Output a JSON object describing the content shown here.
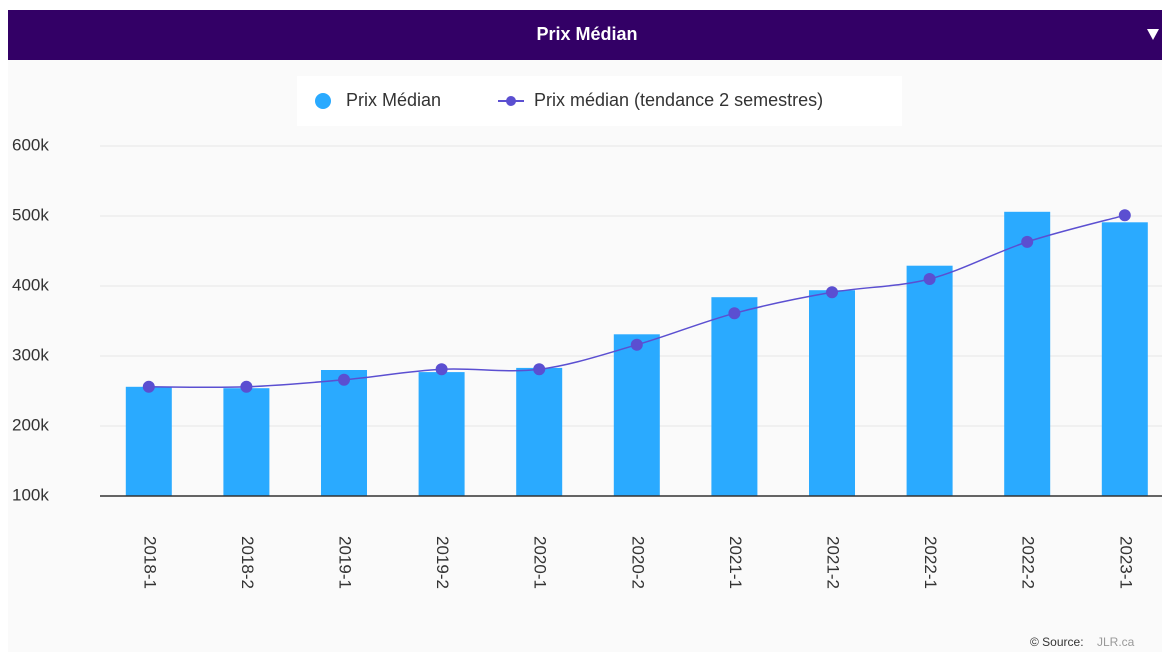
{
  "chart_data": {
    "type": "bar",
    "title": "Prix Médian",
    "categories": [
      "2018-1",
      "2018-2",
      "2019-1",
      "2019-2",
      "2020-1",
      "2020-2",
      "2021-1",
      "2021-2",
      "2022-1",
      "2022-2",
      "2023-1"
    ],
    "series": [
      {
        "name": "Prix Médian",
        "type": "bar",
        "color": "#2aaaff",
        "values": [
          256000,
          254000,
          280000,
          277000,
          283000,
          331000,
          384000,
          394000,
          429000,
          506000,
          491000
        ]
      },
      {
        "name": "Prix médian (tendance 2 semestres)",
        "type": "line",
        "color": "#5b4fd1",
        "values": [
          256000,
          256000,
          266000,
          281000,
          281000,
          316000,
          361000,
          391000,
          410000,
          463000,
          501000
        ]
      }
    ],
    "ylim": [
      100000,
      600000
    ],
    "yticks": [
      {
        "value": 100000,
        "label": "100k"
      },
      {
        "value": 200000,
        "label": "200k"
      },
      {
        "value": 300000,
        "label": "300k"
      },
      {
        "value": 400000,
        "label": "400k"
      },
      {
        "value": 500000,
        "label": "500k"
      },
      {
        "value": 600000,
        "label": "600k"
      }
    ],
    "grid": true,
    "legend": "top",
    "source_label": "© Source:",
    "source_link": "JLR.ca"
  }
}
